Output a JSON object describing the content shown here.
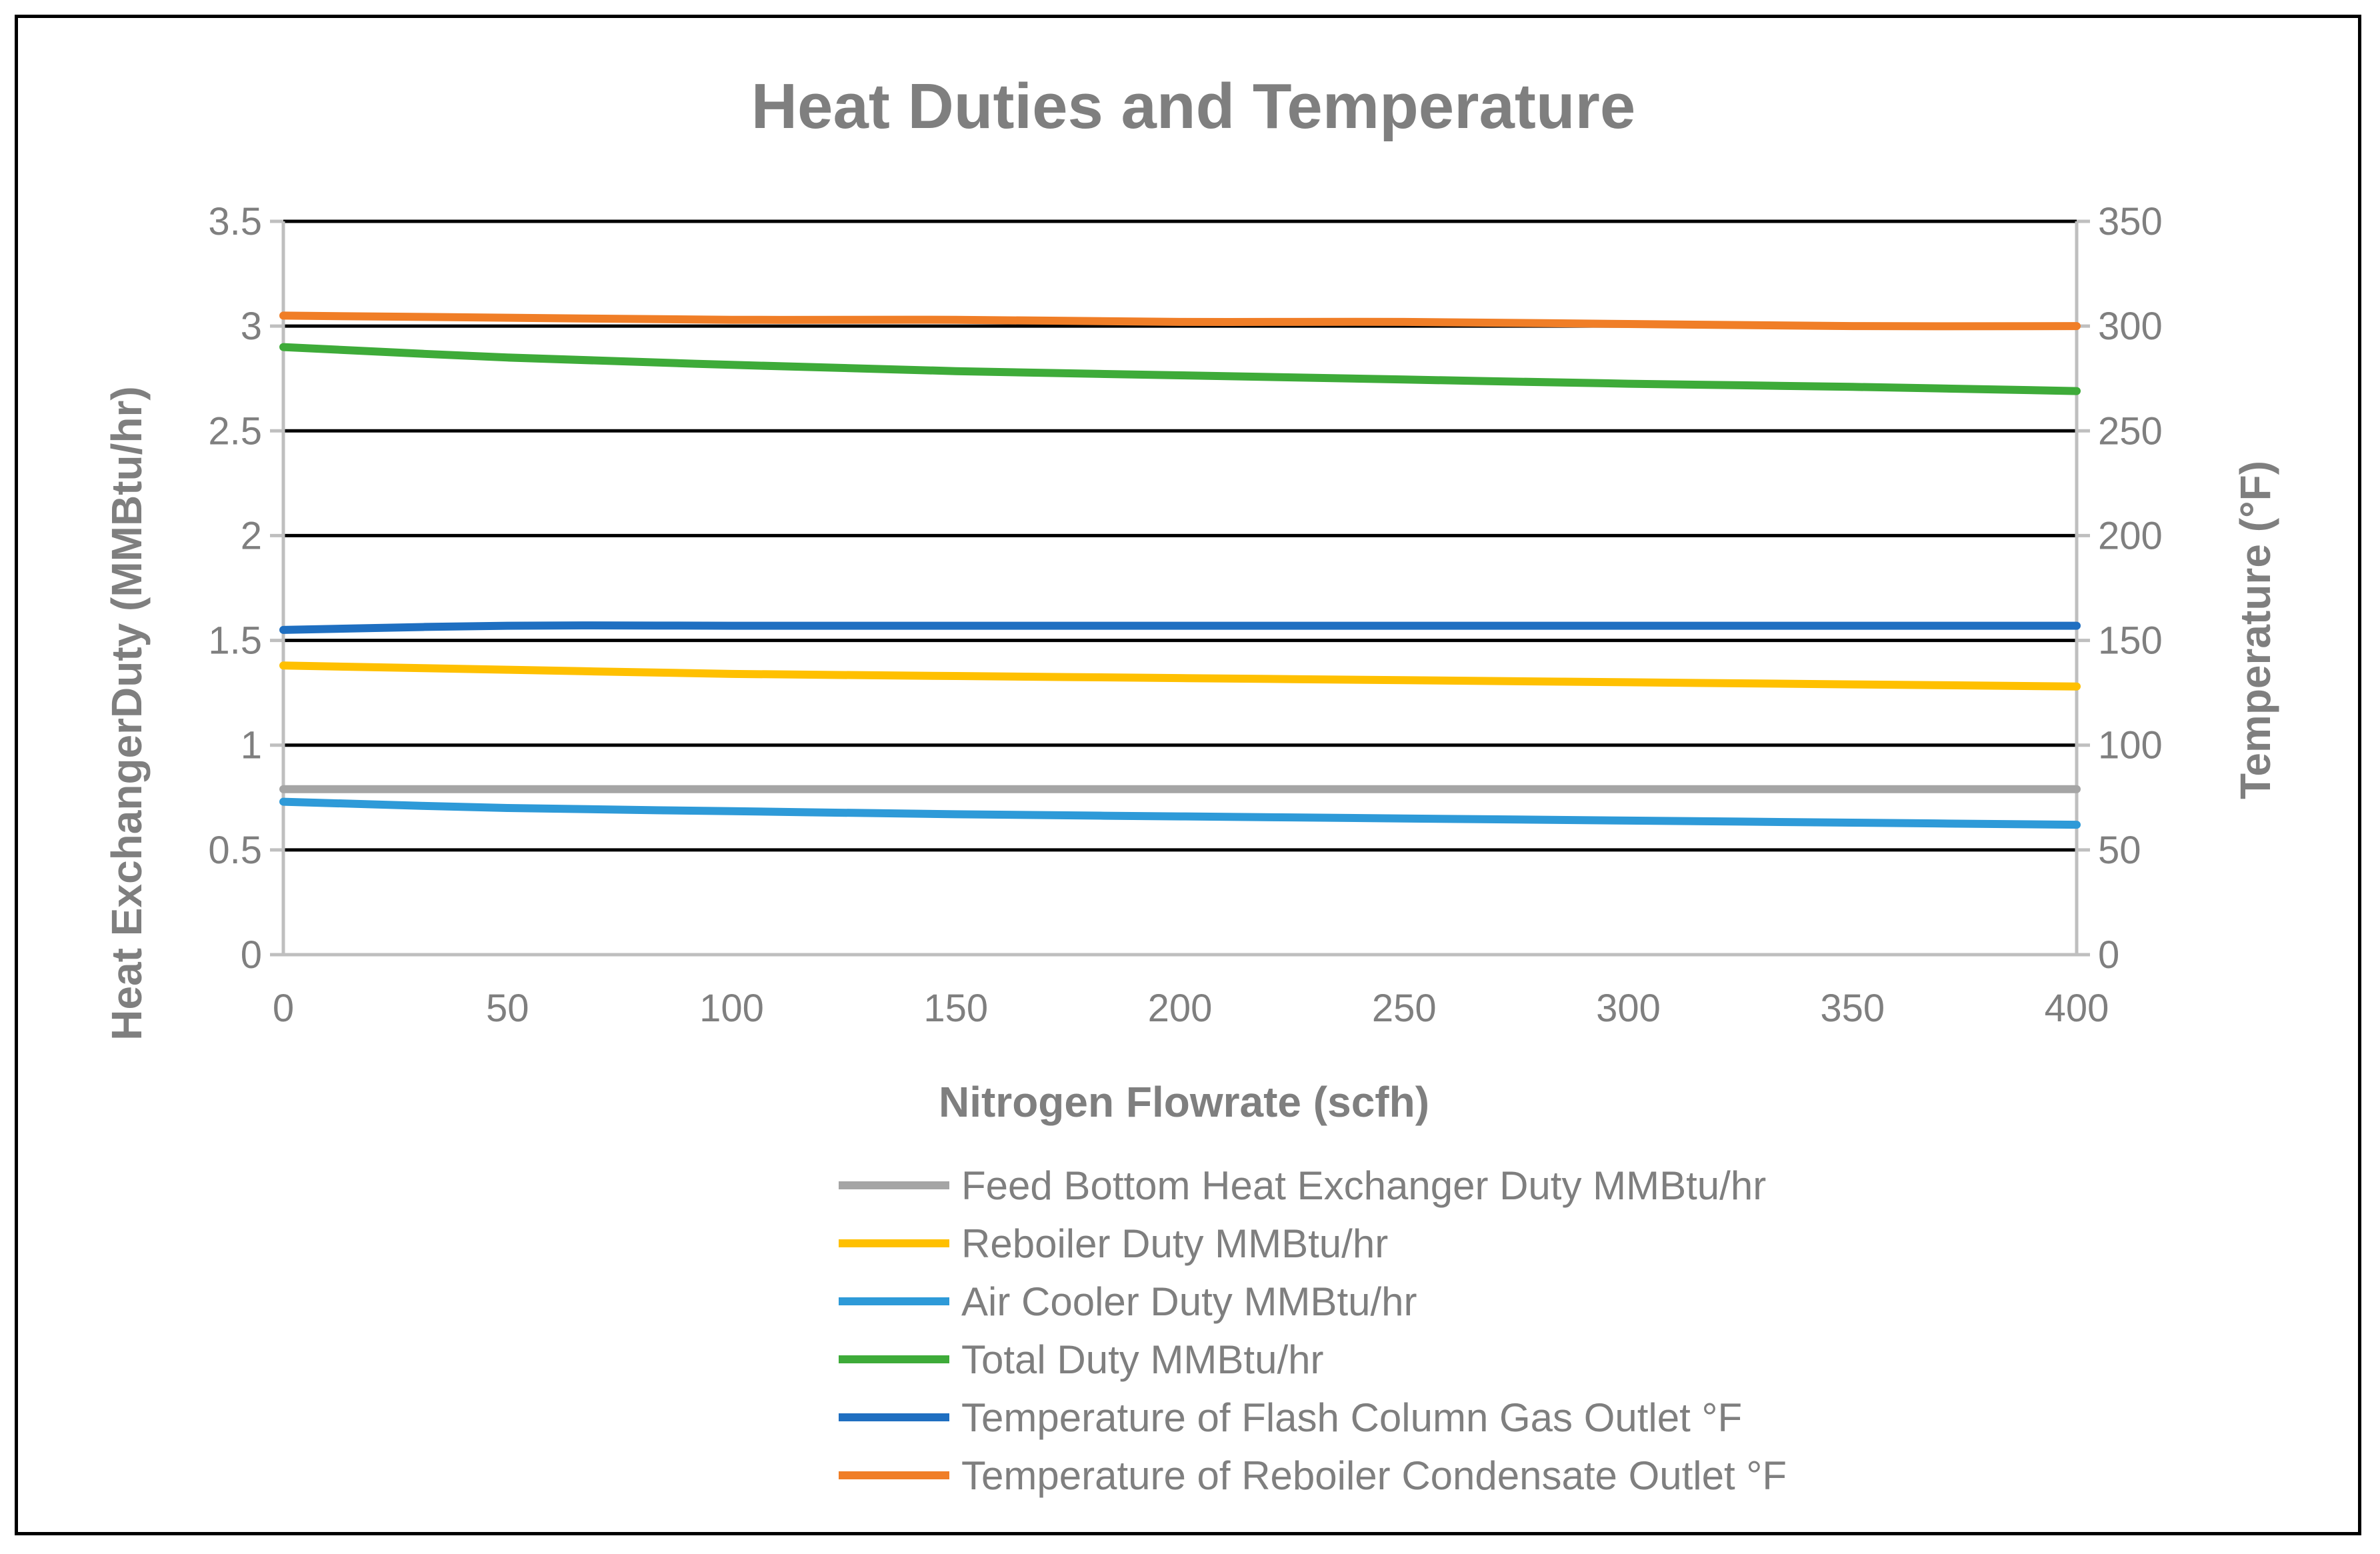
{
  "chart_data": {
    "type": "line",
    "title": "Heat Duties and Temperature",
    "xlabel": "Nitrogen Flowrate (scfh)",
    "ylabel": "Heat ExchangerDuty (MMBtu/hr)",
    "y2label": "Temperature (°F)",
    "xlim": [
      0,
      400
    ],
    "ylim": [
      0,
      3.5
    ],
    "y2lim": [
      0,
      350
    ],
    "x_ticks": [
      "0",
      "50",
      "100",
      "150",
      "200",
      "250",
      "300",
      "350",
      "400"
    ],
    "y_ticks": [
      "0",
      "0.5",
      "1",
      "1.5",
      "2",
      "2.5",
      "3",
      "3.5"
    ],
    "y2_ticks": [
      "0",
      "50",
      "100",
      "150",
      "200",
      "250",
      "300",
      "350"
    ],
    "grid": true,
    "legend_position": "bottom",
    "x": [
      0,
      50,
      100,
      150,
      200,
      250,
      300,
      350,
      400
    ],
    "series": [
      {
        "name": "Feed Bottom Heat Exchanger Duty MMBtu/hr",
        "axis": "left",
        "color": "#a5a5a5",
        "values": [
          0.79,
          0.79,
          0.79,
          0.79,
          0.79,
          0.79,
          0.79,
          0.79,
          0.79
        ]
      },
      {
        "name": "Reboiler Duty MMBtu/hr",
        "axis": "left",
        "color": "#ffc000",
        "values": [
          1.38,
          1.36,
          1.34,
          1.33,
          1.32,
          1.31,
          1.3,
          1.29,
          1.28
        ]
      },
      {
        "name": "Air Cooler Duty MMBtu/hr",
        "axis": "left",
        "color": "#2e9ad8",
        "values": [
          0.73,
          0.7,
          0.685,
          0.67,
          0.66,
          0.65,
          0.64,
          0.63,
          0.62
        ]
      },
      {
        "name": "Total Duty MMBtu/hr",
        "axis": "left",
        "color": "#3eab39",
        "values": [
          2.9,
          2.85,
          2.815,
          2.785,
          2.765,
          2.745,
          2.725,
          2.71,
          2.69
        ]
      },
      {
        "name": "Temperature of Flash Column Gas Outlet °F",
        "axis": "right",
        "color": "#1f6fc1",
        "values": [
          155,
          157,
          157,
          157,
          157,
          157,
          157,
          157,
          157
        ]
      },
      {
        "name": "Temperature of Reboiler Condensate Outlet °F",
        "axis": "right",
        "color": "#f07e27",
        "values": [
          305,
          304,
          303,
          303,
          302,
          302,
          301,
          300,
          300
        ]
      }
    ]
  }
}
